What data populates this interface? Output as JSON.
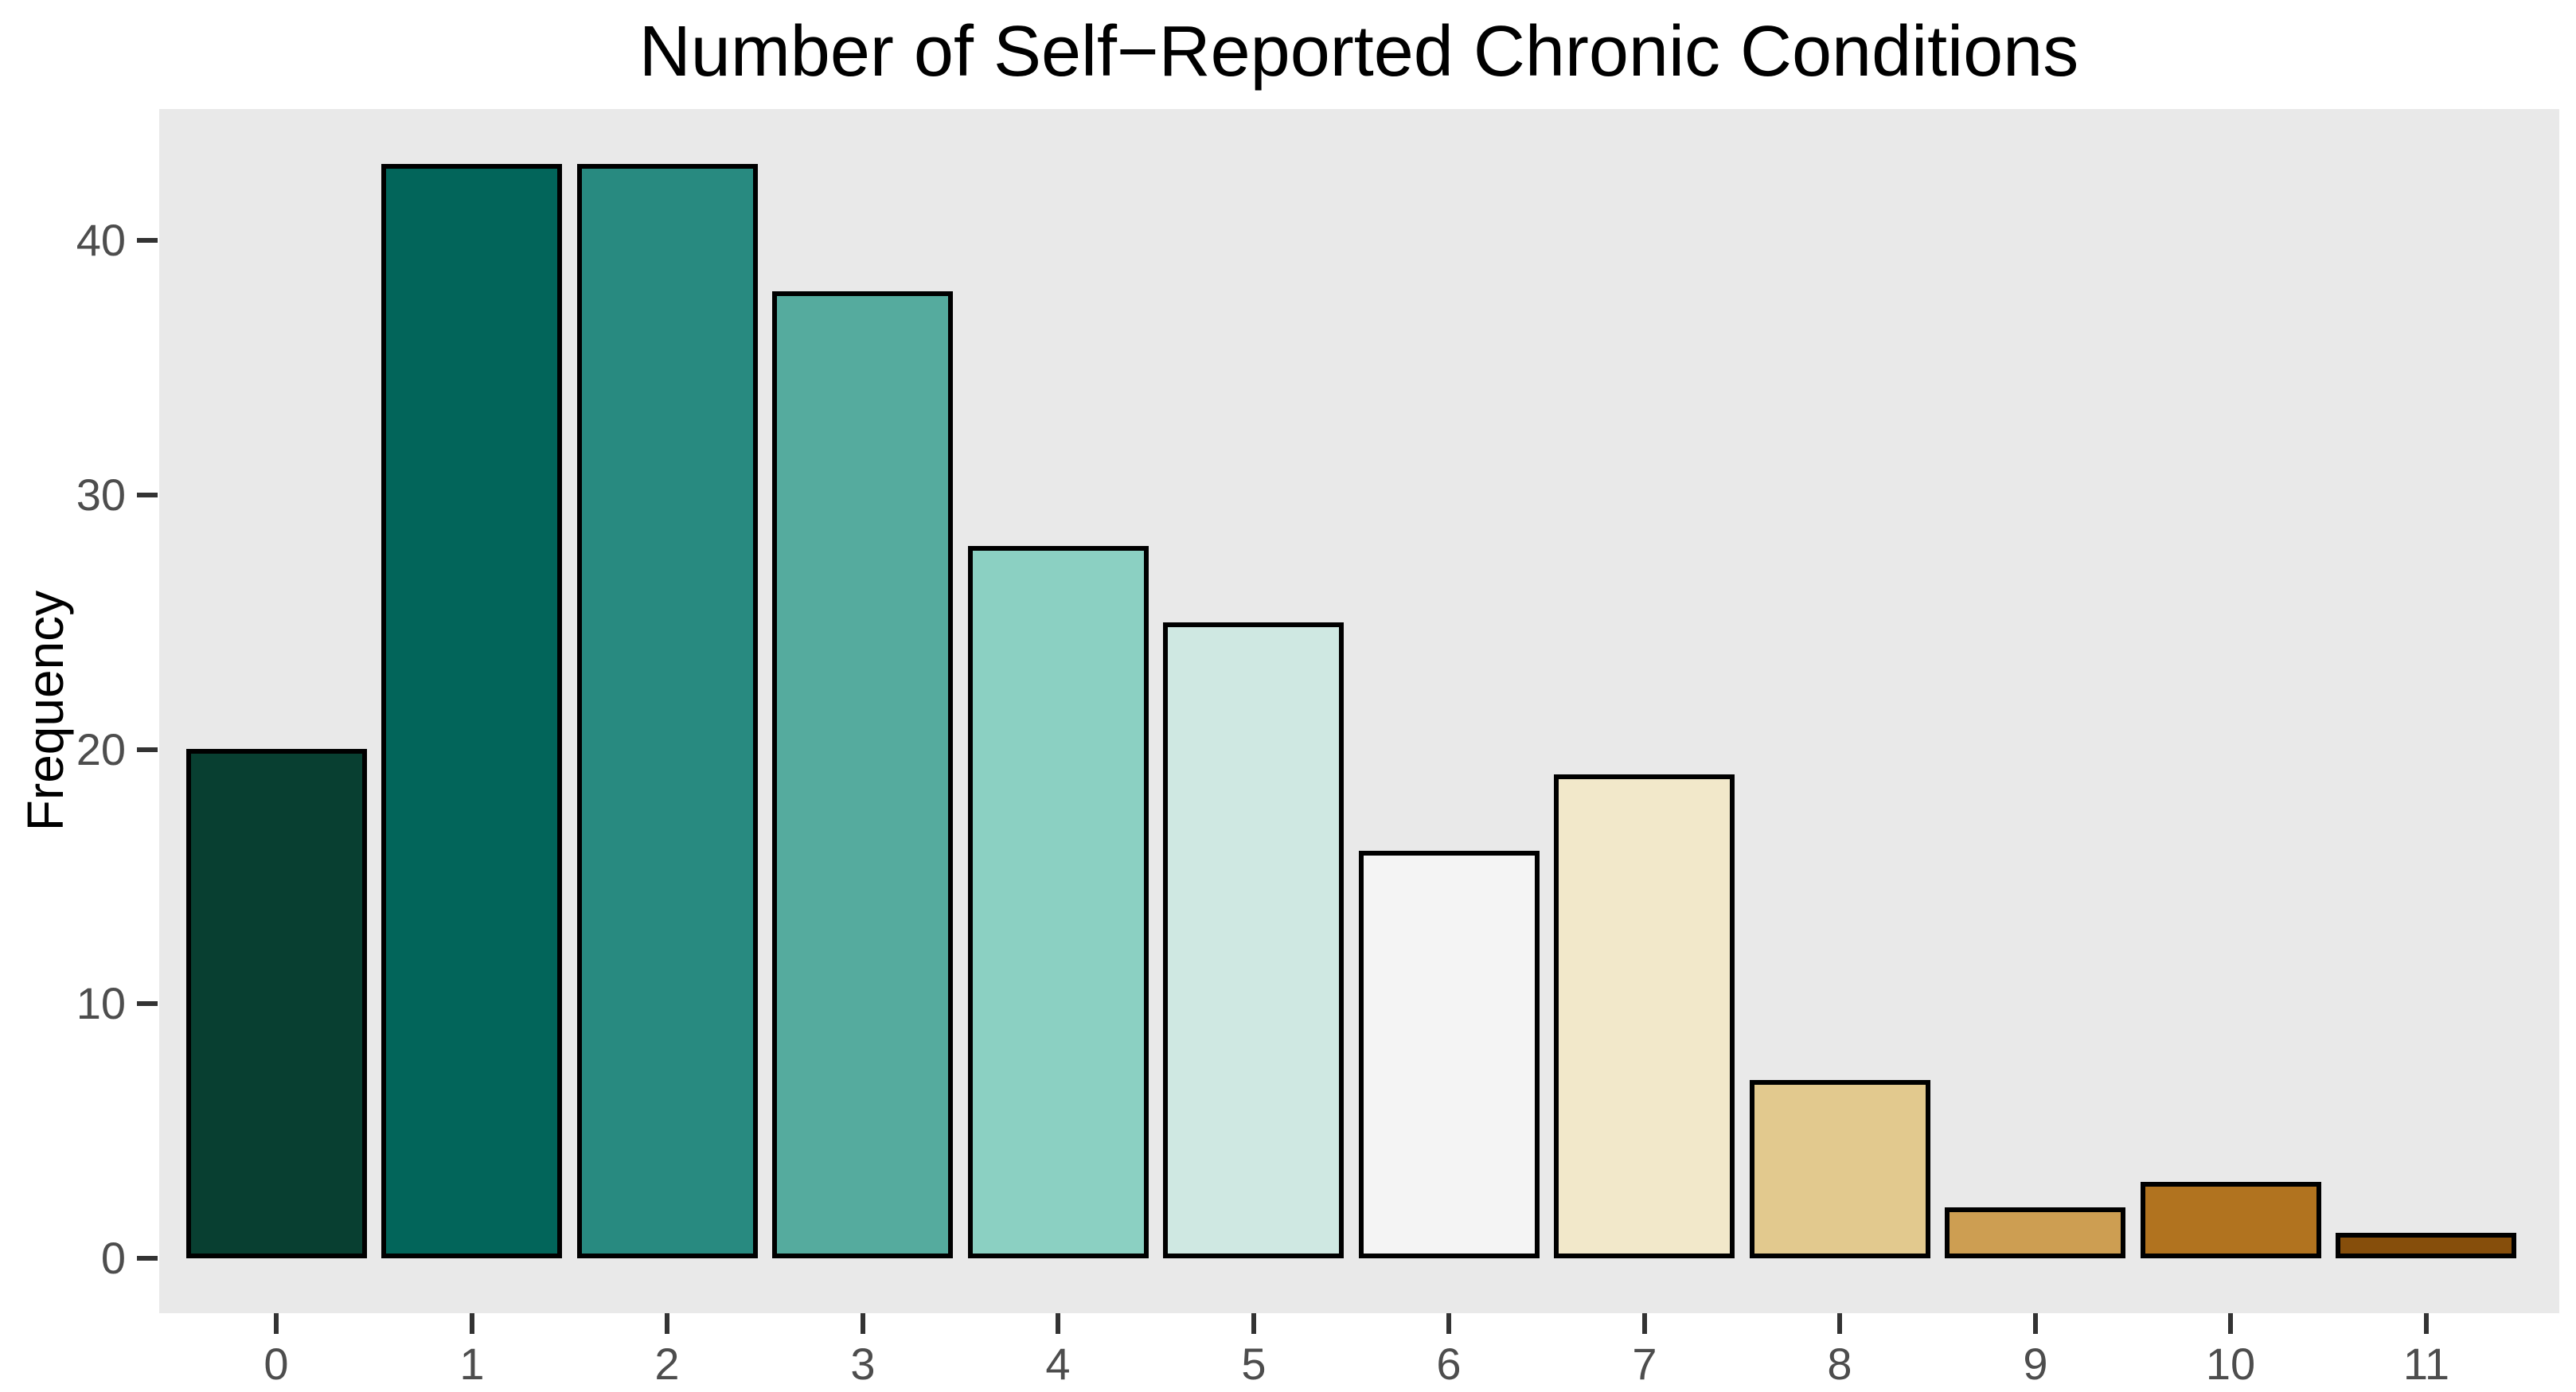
{
  "chart_data": {
    "type": "bar",
    "title": "Number of Self−Reported Chronic Conditions",
    "xlabel": "",
    "ylabel": "Frequency",
    "categories": [
      "0",
      "1",
      "2",
      "3",
      "4",
      "5",
      "6",
      "7",
      "8",
      "9",
      "10",
      "11"
    ],
    "values": [
      20,
      43,
      43,
      38,
      28,
      25,
      16,
      19,
      7,
      2,
      3,
      1
    ],
    "yticks": [
      0,
      10,
      20,
      30,
      40
    ],
    "ylim": [
      -2.15,
      45.15
    ],
    "grid": false,
    "legend_position": "none",
    "bar_colors": [
      "#083f31",
      "#02655a",
      "#288a80",
      "#55ab9e",
      "#8bd0c2",
      "#cfe8e2",
      "#f4f4f4",
      "#f2e8ca",
      "#e2c98e",
      "#cd9e52",
      "#b1731f",
      "#864e0b"
    ],
    "panel_background": "#e9e9e9",
    "bar_border_color": "#000000",
    "axis_tick_color": "#333333",
    "axis_text_color": "#4d4d4d",
    "title_color": "#000000"
  }
}
